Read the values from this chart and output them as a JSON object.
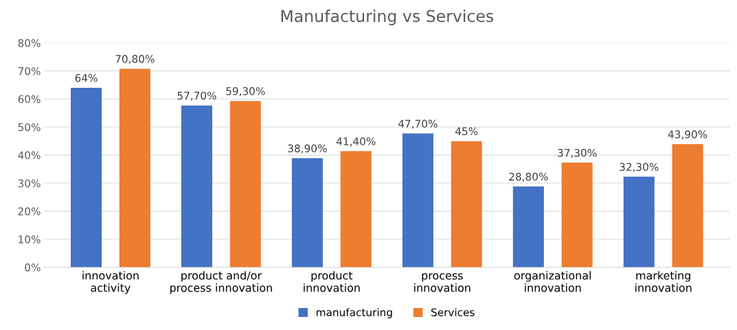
{
  "chart_data": {
    "type": "bar",
    "title": "Manufacturing vs Services",
    "categories": [
      "innovation\nactivity",
      "product and/or\nprocess innovation",
      "product\ninnovation",
      "process\ninnovation",
      "organizational\ninnovation",
      "marketing\ninnovation"
    ],
    "series": [
      {
        "name": "manufacturing",
        "color": "#4472c4",
        "values": [
          64,
          57.7,
          38.9,
          47.7,
          28.8,
          32.3
        ],
        "value_labels": [
          "64%",
          "57,70%",
          "38,90%",
          "47,70%",
          "28,80%",
          "32,30%"
        ]
      },
      {
        "name": "Services",
        "color": "#ed7d31",
        "values": [
          70.8,
          59.3,
          41.4,
          45,
          37.3,
          43.9
        ],
        "value_labels": [
          "70,80%",
          "59,30%",
          "41,40%",
          "45%",
          "37,30%",
          "43,90%"
        ]
      }
    ],
    "ylim": [
      0,
      80
    ],
    "yticks": [
      {
        "value": 0,
        "label": "0%"
      },
      {
        "value": 10,
        "label": "10%"
      },
      {
        "value": 20,
        "label": "20%"
      },
      {
        "value": 30,
        "label": "30%"
      },
      {
        "value": 40,
        "label": "40%"
      },
      {
        "value": 50,
        "label": "50%"
      },
      {
        "value": 60,
        "label": "60%"
      },
      {
        "value": 70,
        "label": "70%"
      },
      {
        "value": 80,
        "label": "80%"
      }
    ],
    "grid": "y",
    "legend": "bottom"
  }
}
